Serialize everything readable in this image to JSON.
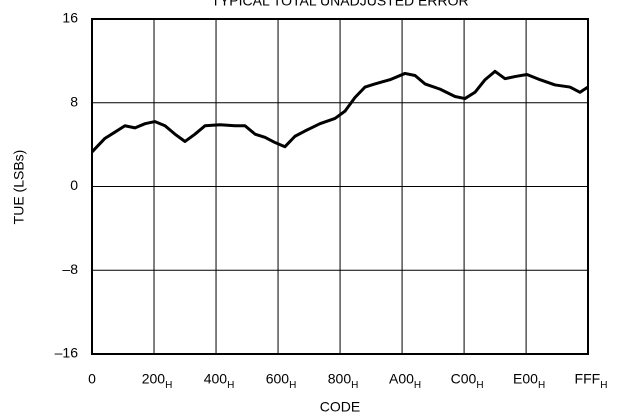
{
  "chart_data": {
    "type": "line",
    "title": "TYPICAL TOTAL UNADJUSTED ERROR",
    "x_label": "CODE",
    "y_label": "TUE (LSBs)",
    "xlim": [
      0,
      4095
    ],
    "ylim": [
      -16,
      16
    ],
    "xticks": [
      0,
      {
        "value": 512,
        "label": "200H"
      },
      {
        "value": 1024,
        "label": "400H"
      },
      {
        "value": 1536,
        "label": "600H"
      },
      {
        "value": 2048,
        "label": "800H"
      },
      {
        "value": 2560,
        "label": "A00H"
      },
      {
        "value": 3072,
        "label": "C00H"
      },
      {
        "value": 3584,
        "label": "E00H"
      },
      {
        "value": 4095,
        "label": "FFFH"
      }
    ],
    "yticks": [
      {
        "value": -16,
        "label": "–16"
      },
      {
        "value": -8,
        "label": "–8"
      },
      0,
      8,
      16
    ],
    "grid": true,
    "series": [
      {
        "color": "#000000",
        "x": [
          0,
          107,
          190,
          272,
          355,
          438,
          520,
          603,
          685,
          768,
          850,
          933,
          1057,
          1181,
          1263,
          1346,
          1428,
          1511,
          1593,
          1676,
          1758,
          1882,
          2006,
          2089,
          2171,
          2254,
          2336,
          2460,
          2584,
          2667,
          2749,
          2873,
          2997,
          3079,
          3162,
          3245,
          3327,
          3410,
          3492,
          3591,
          3699,
          3823,
          3946,
          4029,
          4095
        ],
        "values": [
          3.3,
          4.6,
          5.2,
          5.8,
          5.6,
          6.0,
          6.2,
          5.8,
          5.0,
          4.3,
          5.0,
          5.8,
          5.9,
          5.8,
          5.8,
          5.0,
          4.7,
          4.2,
          3.8,
          4.8,
          5.3,
          6.0,
          6.5,
          7.2,
          8.5,
          9.5,
          9.8,
          10.2,
          10.8,
          10.6,
          9.8,
          9.3,
          8.6,
          8.4,
          9.0,
          10.2,
          11.0,
          10.3,
          10.5,
          10.7,
          10.2,
          9.7,
          9.5,
          9.0,
          9.5
        ]
      }
    ]
  }
}
